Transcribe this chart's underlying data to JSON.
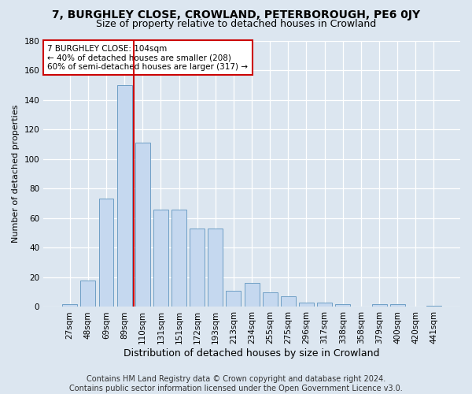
{
  "title": "7, BURGHLEY CLOSE, CROWLAND, PETERBOROUGH, PE6 0JY",
  "subtitle": "Size of property relative to detached houses in Crowland",
  "xlabel": "Distribution of detached houses by size in Crowland",
  "ylabel": "Number of detached properties",
  "categories": [
    "27sqm",
    "48sqm",
    "69sqm",
    "89sqm",
    "110sqm",
    "131sqm",
    "151sqm",
    "172sqm",
    "193sqm",
    "213sqm",
    "234sqm",
    "255sqm",
    "275sqm",
    "296sqm",
    "317sqm",
    "338sqm",
    "358sqm",
    "379sqm",
    "400sqm",
    "420sqm",
    "441sqm"
  ],
  "values": [
    2,
    18,
    73,
    150,
    111,
    66,
    66,
    53,
    53,
    11,
    16,
    10,
    7,
    3,
    3,
    2,
    0,
    2,
    2,
    0,
    1
  ],
  "bar_color": "#c5d8ef",
  "bar_edge_color": "#6e9fc5",
  "vline_color": "#cc0000",
  "annotation_text": "7 BURGHLEY CLOSE: 104sqm\n← 40% of detached houses are smaller (208)\n60% of semi-detached houses are larger (317) →",
  "annotation_box_color": "#ffffff",
  "annotation_box_edge": "#cc0000",
  "ylim": [
    0,
    180
  ],
  "yticks": [
    0,
    20,
    40,
    60,
    80,
    100,
    120,
    140,
    160,
    180
  ],
  "background_color": "#dce6f0",
  "plot_bg_color": "#dce6f0",
  "footer_line1": "Contains HM Land Registry data © Crown copyright and database right 2024.",
  "footer_line2": "Contains public sector information licensed under the Open Government Licence v3.0.",
  "title_fontsize": 10,
  "subtitle_fontsize": 9,
  "xlabel_fontsize": 9,
  "ylabel_fontsize": 8,
  "tick_fontsize": 7.5,
  "footer_fontsize": 7
}
